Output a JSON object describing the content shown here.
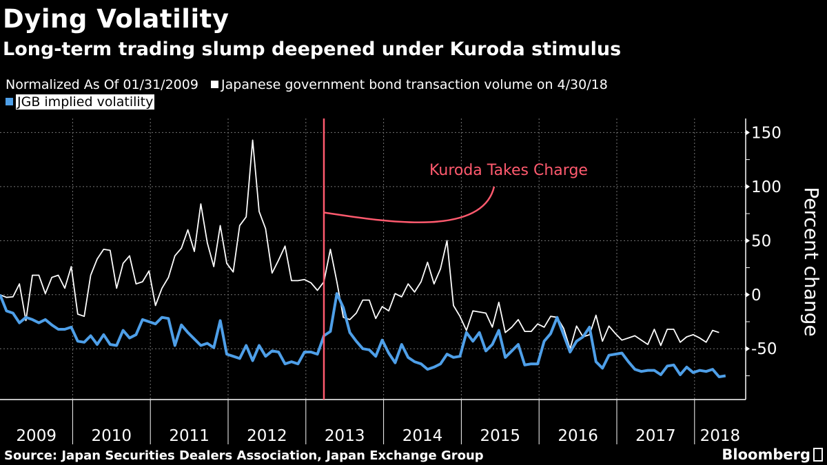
{
  "header": {
    "title": "Dying Volatility",
    "subtitle": "Long-term trading slump deepened under Kuroda stimulus"
  },
  "legend": {
    "note": "Normalized As Of 01/31/2009",
    "items": [
      {
        "label": "Japanese government bond transaction volume on 4/30/18",
        "color": "#ffffff"
      },
      {
        "label": "JGB implied volatility",
        "color": "#4e9fe8"
      }
    ]
  },
  "footer": {
    "source": "Source: Japan Securities Dealers Association, Japan Exchange Group",
    "brand": "Bloomberg"
  },
  "chart_data": {
    "type": "line",
    "x_start": "2009-01",
    "x_frequency": "monthly",
    "x_tick_labels": [
      "2009",
      "2010",
      "2011",
      "2012",
      "2013",
      "2014",
      "2015",
      "2016",
      "2017",
      "2018"
    ],
    "ylabel": "Percent change",
    "y_axis_position": "right",
    "ylim": [
      -97,
      163
    ],
    "y_ticks": [
      150,
      100,
      50,
      0,
      -50
    ],
    "grid": true,
    "legend_placement": "top-left",
    "series": [
      {
        "name": "Japanese government bond transaction volume on 4/30/18",
        "color": "#ffffff",
        "values": [
          0,
          -2.5,
          -2,
          10,
          -24,
          18,
          18,
          1,
          16,
          18,
          6,
          26,
          -18,
          -20,
          18,
          33,
          42,
          41,
          6,
          29,
          36,
          10,
          12,
          22,
          -10,
          6,
          16,
          36,
          43,
          60,
          40,
          84,
          48,
          26,
          64,
          29,
          21,
          64,
          72,
          143,
          77,
          61,
          20,
          32,
          45,
          13,
          13,
          14,
          11,
          4,
          12,
          42,
          12,
          -21,
          -23,
          -17,
          -5,
          -5,
          -22,
          -11,
          -15,
          1,
          -2,
          10,
          2.5,
          12,
          30,
          10,
          24,
          50,
          -10,
          -20,
          -33,
          -15,
          -16,
          -17,
          -30,
          -7,
          -35,
          -30,
          -23,
          -34,
          -34,
          -27,
          -30,
          -20,
          -21,
          -31,
          -50,
          -29,
          -39,
          -37,
          -19,
          -43,
          -29,
          -36,
          -42,
          -40,
          -38,
          -42,
          -46,
          -32,
          -47,
          -32,
          -32,
          -44,
          -39,
          -37,
          -40,
          -44,
          -33,
          -35
        ]
      },
      {
        "name": "JGB implied volatility",
        "color": "#4e9fe8",
        "values": [
          0,
          -15,
          -17,
          -26,
          -21,
          -23,
          -26,
          -23,
          -28,
          -32,
          -32,
          -30,
          -43,
          -44,
          -38,
          -46,
          -37,
          -46,
          -47,
          -33,
          -40,
          -37,
          -23,
          -25,
          -27,
          -21,
          -22,
          -47,
          -28,
          -35,
          -41,
          -47,
          -45,
          -49,
          -24,
          -55,
          -57,
          -59,
          -47,
          -61,
          -47,
          -57,
          -52,
          -53,
          -64,
          -62,
          -64,
          -53,
          -53,
          -55,
          -38,
          -34,
          1,
          -12,
          -35,
          -43,
          -50,
          -51,
          -57,
          -42,
          -54,
          -63,
          -46,
          -58,
          -62,
          -64,
          -69,
          -67,
          -64,
          -55,
          -58,
          -57,
          -35,
          -43,
          -35,
          -52,
          -46,
          -33,
          -58,
          -52,
          -46,
          -65,
          -64,
          -64,
          -43,
          -36,
          -21,
          -37,
          -53,
          -43,
          -39,
          -30,
          -62,
          -68,
          -56,
          -55,
          -54,
          -62,
          -69,
          -71,
          -70,
          -70,
          -74,
          -66,
          -65,
          -74,
          -67,
          -72,
          -70,
          -71,
          -69,
          -76,
          -75
        ]
      }
    ],
    "annotations": [
      {
        "type": "vertical-line",
        "x": "2013-03",
        "color": "#ff5a6e"
      },
      {
        "type": "callout",
        "text": "Kuroda Takes Charge",
        "color": "#ff5a6e"
      }
    ]
  }
}
